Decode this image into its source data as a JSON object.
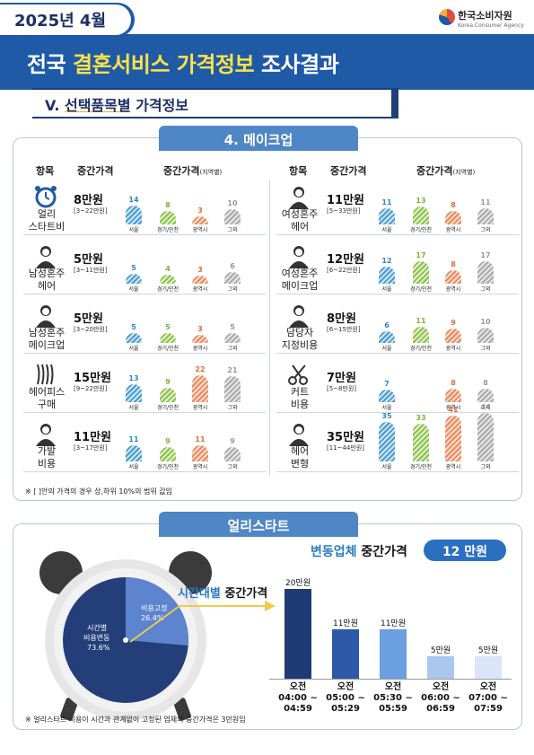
{
  "header": {
    "date": "2025년 4월",
    "logo_name": "한국소비자원",
    "logo_sub": "Korea Consumer Agency",
    "title_pre": "전국 ",
    "title_hl": "결혼서비스 가격정보",
    "title_post": " 조사결과",
    "section_num": "V. ",
    "section_u": "선택품목별",
    "section_rest": " 가격정보"
  },
  "makeup": {
    "title": "4. 메이크업",
    "col_item": "항목",
    "col_median": "중간가격",
    "col_region": "중간가격",
    "col_region_small": "(지역별)",
    "regions": [
      "서울",
      "경기/인천",
      "광역시",
      "그외"
    ],
    "colors": {
      "seoul": "#4a9bd1",
      "gg": "#8cc24a",
      "gy": "#e98a5f",
      "etc": "#aaaaaa"
    },
    "left": [
      {
        "icon": "alarm-clock-icon",
        "name1": "얼리",
        "name2": "스타트비",
        "price": "8만원",
        "range": "[3~22만원]",
        "values": [
          14,
          8,
          3,
          10
        ]
      },
      {
        "icon": "groom-icon",
        "name1": "남성혼주",
        "name2": "헤어",
        "price": "5만원",
        "range": "[3~11만원]",
        "values": [
          5,
          4,
          3,
          6
        ]
      },
      {
        "icon": "groom-makeup-icon",
        "name1": "남성혼주",
        "name2": "메이크업",
        "price": "5만원",
        "range": "[3~20만원]",
        "values": [
          5,
          5,
          3,
          5
        ]
      },
      {
        "icon": "hairpiece-icon",
        "name1": "헤어피스",
        "name2": "구매",
        "price": "15만원",
        "range": "[9~22만원]",
        "values": [
          13,
          9,
          22,
          21
        ]
      },
      {
        "icon": "wig-icon",
        "name1": "가발",
        "name2": "비용",
        "price": "11만원",
        "range": "[3~17만원]",
        "values": [
          11,
          9,
          11,
          9
        ]
      }
    ],
    "right": [
      {
        "icon": "bride-hair-icon",
        "name1": "여성혼주",
        "name2": "헤어",
        "price": "11만원",
        "range": "[5~33만원]",
        "values": [
          11,
          13,
          8,
          11
        ]
      },
      {
        "icon": "bride-makeup-icon",
        "name1": "여성혼주",
        "name2": "메이크업",
        "price": "12만원",
        "range": "[6~22만원]",
        "values": [
          12,
          17,
          8,
          17
        ]
      },
      {
        "icon": "designated-staff-icon",
        "name1": "담당자",
        "name2": "지정비용",
        "price": "8만원",
        "range": "[6~15만원]",
        "values": [
          6,
          11,
          9,
          10
        ]
      },
      {
        "icon": "scissors-icon",
        "name1": "커트",
        "name2": "비용",
        "price": "7만원",
        "range": "[5~8만원]",
        "values": [
          7,
          null,
          8,
          8
        ]
      },
      {
        "icon": "hair-change-icon",
        "name1": "헤어",
        "name2": "변형",
        "price": "35만원",
        "range": "[11~44만원]",
        "values": [
          35,
          33,
          41,
          44
        ]
      }
    ],
    "note": "※ [ ]안의 가격의 경우 상,하위 10%의 범위 값임"
  },
  "early": {
    "title": "얼리스타트",
    "pie_fixed_label": "비용고정",
    "pie_fixed_pct": "26.4%",
    "pie_var_label1": "시간별",
    "pie_var_label2": "비용변동",
    "pie_var_pct": "73.6%",
    "pie_fixed_value": 26.4,
    "var_title_b": "변동업체",
    "var_title_rest": " 중간가격",
    "var_value": "12 만원",
    "time_title_b": "시간대별",
    "time_title_rest": " 중간가격",
    "note": "※ 얼리스타트 비용이 시간과 관계없이 고정된 업체의 중간가격은 3만원임"
  },
  "chart_data": {
    "type": "bar",
    "categories": [
      "오전 04:00 ~ 04:59",
      "오전 05:00 ~ 05:29",
      "오전 05:30 ~ 05:59",
      "오전 06:00 ~ 06:59",
      "오전 07:00 ~ 07:59"
    ],
    "cat_line1": [
      "오전",
      "오전",
      "오전",
      "오전",
      "오전"
    ],
    "cat_line2": [
      "04:00 ~",
      "05:00 ~",
      "05:30 ~",
      "06:00 ~",
      "07:00 ~"
    ],
    "cat_line3": [
      "04:59",
      "05:29",
      "05:59",
      "06:59",
      "07:59"
    ],
    "values": [
      20,
      11,
      11,
      5,
      5
    ],
    "labels": [
      "20만원",
      "11만원",
      "11만원",
      "5만원",
      "5만원"
    ],
    "colors": [
      "#1f3b73",
      "#2d5aa8",
      "#6b9fe0",
      "#a9c8f0",
      "#d9e6f7"
    ],
    "ylim": [
      0,
      20
    ]
  }
}
